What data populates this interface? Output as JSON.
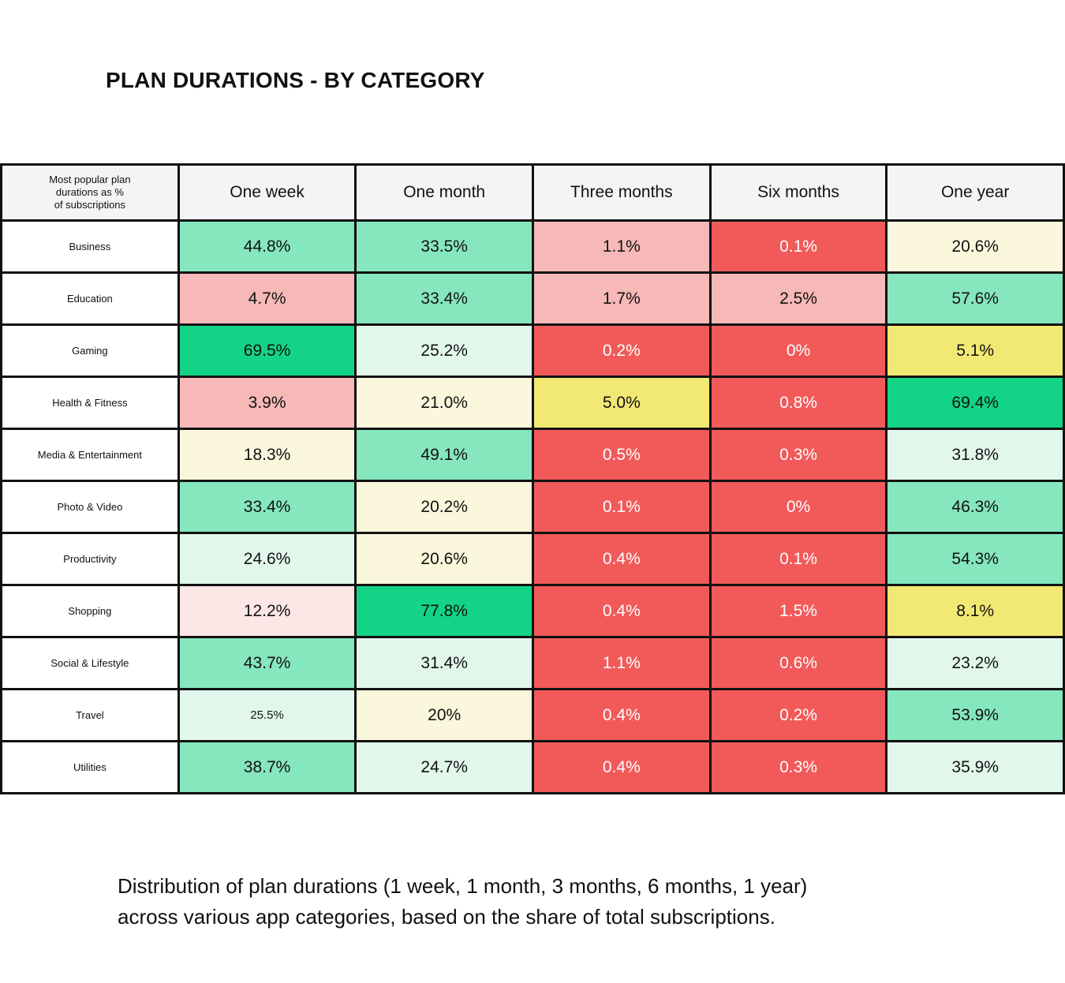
{
  "title": "PLAN DURATIONS - BY CATEGORY",
  "caption_line1": "Distribution of plan durations (1 week, 1 month, 3 months, 6 months, 1 year)",
  "caption_line2": "across various app categories, based on the share of total subscriptions.",
  "colors": {
    "very_low": "#f25a5a",
    "low": "#f7b8b8",
    "low_light": "#fde6e6",
    "mid_strong": "#f2e874",
    "mid_light": "#fbf7dc",
    "high_light": "#e2f7ec",
    "high": "#86e6be",
    "very_high": "#13d386"
  },
  "chart_data": {
    "type": "table",
    "corner_label": "Most popular plan\ndurations as %\nof subscriptions",
    "columns": [
      "One week",
      "One month",
      "Three months",
      "Six months",
      "One year"
    ],
    "rows": [
      {
        "category": "Business",
        "values": [
          "44.8%",
          "33.5%",
          "1.1%",
          "0.1%",
          "20.6%"
        ],
        "tones": [
          "high",
          "high",
          "low",
          "very_low",
          "mid_light"
        ]
      },
      {
        "category": "Education",
        "values": [
          "4.7%",
          "33.4%",
          "1.7%",
          "2.5%",
          "57.6%"
        ],
        "tones": [
          "low",
          "high",
          "low",
          "low",
          "high"
        ]
      },
      {
        "category": "Gaming",
        "values": [
          "69.5%",
          "25.2%",
          "0.2%",
          "0%",
          "5.1%"
        ],
        "tones": [
          "very_high",
          "high_light",
          "very_low",
          "very_low",
          "mid_strong"
        ]
      },
      {
        "category": "Health & Fitness",
        "values": [
          "3.9%",
          "21.0%",
          "5.0%",
          "0.8%",
          "69.4%"
        ],
        "tones": [
          "low",
          "mid_light",
          "mid_strong",
          "very_low",
          "very_high"
        ]
      },
      {
        "category": "Media & Entertainment",
        "values": [
          "18.3%",
          "49.1%",
          "0.5%",
          "0.3%",
          "31.8%"
        ],
        "tones": [
          "mid_light",
          "high",
          "very_low",
          "very_low",
          "high_light"
        ]
      },
      {
        "category": "Photo & Video",
        "values": [
          "33.4%",
          "20.2%",
          "0.1%",
          "0%",
          "46.3%"
        ],
        "tones": [
          "high",
          "mid_light",
          "very_low",
          "very_low",
          "high"
        ]
      },
      {
        "category": "Productivity",
        "values": [
          "24.6%",
          "20.6%",
          "0.4%",
          "0.1%",
          "54.3%"
        ],
        "tones": [
          "high_light",
          "mid_light",
          "very_low",
          "very_low",
          "high"
        ]
      },
      {
        "category": "Shopping",
        "values": [
          "12.2%",
          "77.8%",
          "0.4%",
          "1.5%",
          "8.1%"
        ],
        "tones": [
          "low_light",
          "very_high",
          "very_low",
          "very_low",
          "mid_strong"
        ]
      },
      {
        "category": "Social & Lifestyle",
        "values": [
          "43.7%",
          "31.4%",
          "1.1%",
          "0.6%",
          "23.2%"
        ],
        "tones": [
          "high",
          "high_light",
          "very_low",
          "very_low",
          "high_light"
        ]
      },
      {
        "category": "Travel",
        "values": [
          "25.5%",
          "20%",
          "0.4%",
          "0.2%",
          "53.9%"
        ],
        "tones": [
          "high_light",
          "mid_light",
          "very_low",
          "very_low",
          "high"
        ]
      },
      {
        "category": "Utilities",
        "values": [
          "38.7%",
          "24.7%",
          "0.4%",
          "0.3%",
          "35.9%"
        ],
        "tones": [
          "high",
          "high_light",
          "very_low",
          "very_low",
          "high_light"
        ]
      }
    ]
  }
}
